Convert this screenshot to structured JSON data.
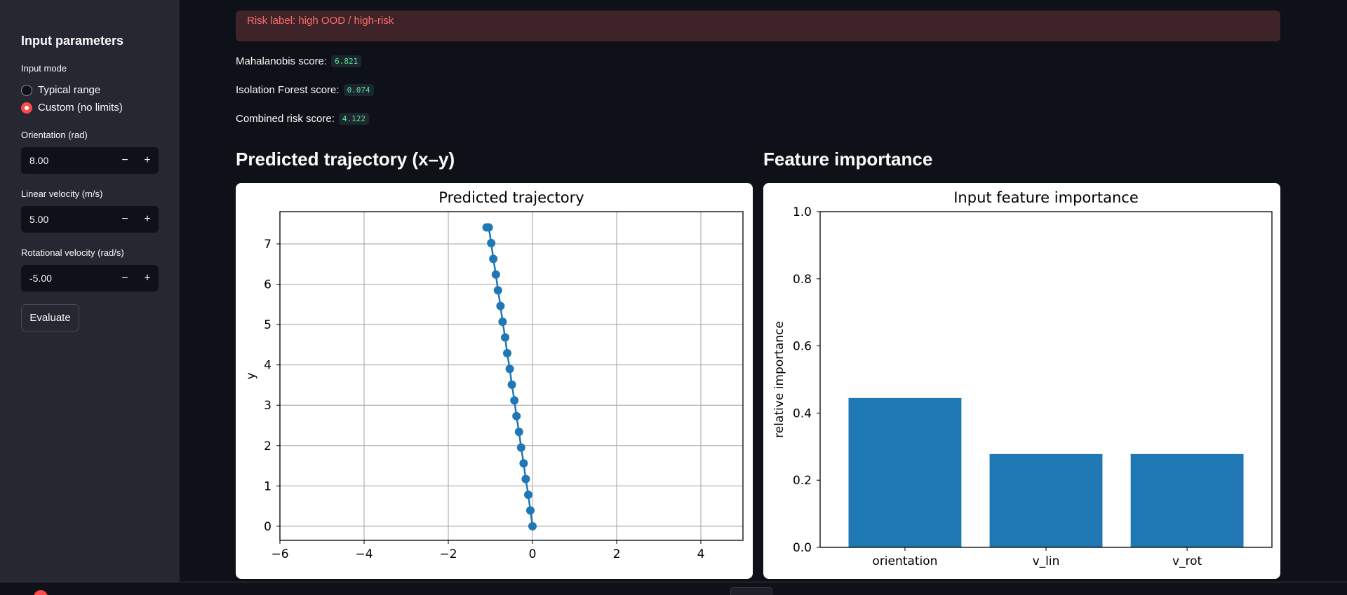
{
  "sidebar": {
    "title": "Input parameters",
    "input_mode_label": "Input mode",
    "modes": [
      {
        "label": "Typical range",
        "checked": false
      },
      {
        "label": "Custom (no limits)",
        "checked": true
      }
    ],
    "fields": [
      {
        "label": "Orientation (rad)",
        "value": "8.00"
      },
      {
        "label": "Linear velocity (m/s)",
        "value": "5.00"
      },
      {
        "label": "Rotational velocity (rad/s)",
        "value": "-5.00"
      }
    ],
    "minus": "−",
    "plus": "+",
    "evaluate_label": "Evaluate"
  },
  "alert": {
    "text": "Risk label: high OOD / high-risk"
  },
  "scores": [
    {
      "label": "Mahalanobis score:",
      "value": "6.821"
    },
    {
      "label": "Isolation Forest score:",
      "value": "0.074"
    },
    {
      "label": "Combined risk score:",
      "value": "4.122"
    }
  ],
  "sections": {
    "trajectory_heading": "Predicted trajectory (x–y)",
    "importance_heading": "Feature importance"
  },
  "colors": {
    "accent": "#ff4b4b",
    "series": "#1f77b4",
    "alert_text": "#ff6c6c",
    "code_text": "#5ce488"
  },
  "chart_data": [
    {
      "type": "line",
      "title": "Predicted trajectory",
      "xlabel": "",
      "ylabel": "y",
      "xlim": [
        -6,
        5
      ],
      "ylim": [
        -0.35,
        7.8
      ],
      "xticks": [
        -6,
        -4,
        -2,
        0,
        2,
        4
      ],
      "xtick_labels": [
        "−6",
        "−4",
        "−2",
        "0",
        "2",
        "4"
      ],
      "yticks": [
        0,
        1,
        2,
        3,
        4,
        5,
        6,
        7
      ],
      "ytick_labels": [
        "0",
        "1",
        "2",
        "3",
        "4",
        "5",
        "6",
        "7"
      ],
      "grid": true,
      "series": [
        {
          "x": [
            0.0,
            -0.05,
            -0.1,
            -0.16,
            -0.21,
            -0.27,
            -0.32,
            -0.38,
            -0.43,
            -0.49,
            -0.54,
            -0.6,
            -0.65,
            -0.71,
            -0.76,
            -0.82,
            -0.87,
            -0.93,
            -0.98,
            -1.04,
            -1.09
          ],
          "y": [
            0.0,
            0.39,
            0.78,
            1.17,
            1.56,
            1.95,
            2.34,
            2.73,
            3.12,
            3.51,
            3.9,
            4.29,
            4.68,
            5.07,
            5.46,
            5.85,
            6.24,
            6.63,
            7.02,
            7.41,
            7.41
          ]
        }
      ]
    },
    {
      "type": "bar",
      "title": "Input feature importance",
      "xlabel": "",
      "ylabel": "relative importance",
      "categories": [
        "orientation",
        "v_lin",
        "v_rot"
      ],
      "values": [
        0.445,
        0.278,
        0.278
      ],
      "ylim": [
        0,
        1
      ],
      "yticks": [
        0,
        0.2,
        0.4,
        0.6,
        0.8,
        1.0
      ],
      "ytick_labels": [
        "0.0",
        "0.2",
        "0.4",
        "0.6",
        "0.8",
        "1.0"
      ],
      "grid": false
    }
  ]
}
